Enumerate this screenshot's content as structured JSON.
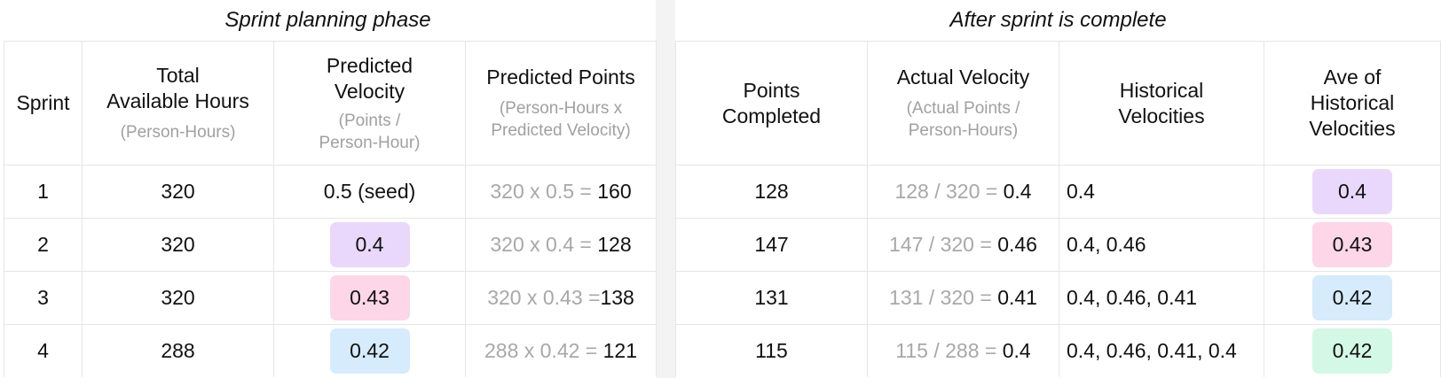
{
  "left": {
    "title": "Sprint planning phase",
    "headers": {
      "sprint": "Sprint",
      "hours_main_1": "Total",
      "hours_main_2": "Available Hours",
      "hours_sub": "(Person-Hours)",
      "velocity_main_1": "Predicted",
      "velocity_main_2": "Velocity",
      "velocity_sub_1": "(Points /",
      "velocity_sub_2": "Person-Hour)",
      "points_main": "Predicted Points",
      "points_sub_1": "(Person-Hours x",
      "points_sub_2": "Predicted Velocity)"
    },
    "rows": [
      {
        "sprint": "1",
        "hours": "320",
        "velocity": "0.5 (seed)",
        "calc": "320 x 0.5 = ",
        "result": "160"
      },
      {
        "sprint": "2",
        "hours": "320",
        "velocity": "0.4",
        "calc": "320 x 0.4 = ",
        "result": "128"
      },
      {
        "sprint": "3",
        "hours": "320",
        "velocity": "0.43",
        "calc": "320 x 0.43 =",
        "result": "138"
      },
      {
        "sprint": "4",
        "hours": "288",
        "velocity": "0.42",
        "calc": "288 x 0.42 = ",
        "result": "121"
      }
    ]
  },
  "right": {
    "title": "After sprint is complete",
    "headers": {
      "points_main_1": "Points",
      "points_main_2": "Completed",
      "actual_main": "Actual Velocity",
      "actual_sub_1": "(Actual Points /",
      "actual_sub_2": "Person-Hours)",
      "historical_main_1": "Historical",
      "historical_main_2": "Velocities",
      "average_main_1": "Ave of",
      "average_main_2": "Historical",
      "average_main_3": "Velocities"
    },
    "rows": [
      {
        "points": "128",
        "calc": "128 / 320 = ",
        "result": "0.4",
        "historical": "0.4",
        "average": "0.4"
      },
      {
        "points": "147",
        "calc": "147 / 320 = ",
        "result": "0.46",
        "historical": "0.4, 0.46",
        "average": "0.43"
      },
      {
        "points": "131",
        "calc": "131 / 320 = ",
        "result": "0.41",
        "historical": "0.4, 0.46, 0.41",
        "average": "0.42"
      },
      {
        "points": "115",
        "calc": "115 / 288 = ",
        "result": "0.4",
        "historical": "0.4, 0.46, 0.41, 0.4",
        "average": "0.42"
      }
    ]
  },
  "colors": {
    "chip_purple": "#e9d8fb",
    "chip_pink": "#fdd6e7",
    "chip_blue": "#d6ebfb",
    "chip_green": "#d3f8e6",
    "muted_text": "#a8a8a8",
    "grid_line": "#e6e6e6"
  }
}
